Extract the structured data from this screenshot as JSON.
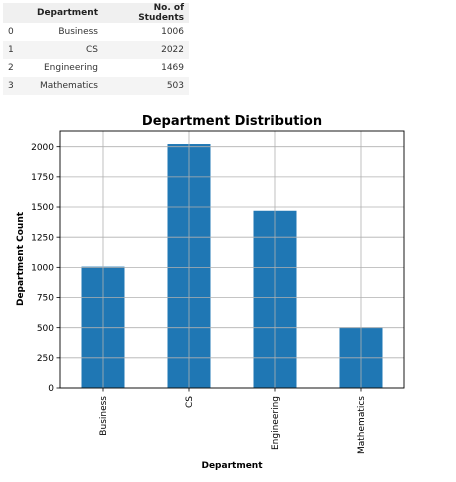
{
  "table": {
    "columns": [
      "",
      "Department",
      "No. of Students"
    ],
    "rows": [
      [
        "0",
        "Business",
        "1006"
      ],
      [
        "1",
        "CS",
        "2022"
      ],
      [
        "2",
        "Engineering",
        "1469"
      ],
      [
        "3",
        "Mathematics",
        "503"
      ]
    ]
  },
  "chart_data": {
    "type": "bar",
    "title": "Department Distribution",
    "xlabel": "Department",
    "ylabel": "Department Count",
    "categories": [
      "Business",
      "CS",
      "Engineering",
      "Mathematics"
    ],
    "values": [
      1006,
      2022,
      1469,
      503
    ],
    "ylim": [
      0,
      2130
    ],
    "yticks": [
      0,
      250,
      500,
      750,
      1000,
      1250,
      1500,
      1750,
      2000
    ],
    "grid": true,
    "legend": "none",
    "bar_color": "#1f77b4"
  }
}
